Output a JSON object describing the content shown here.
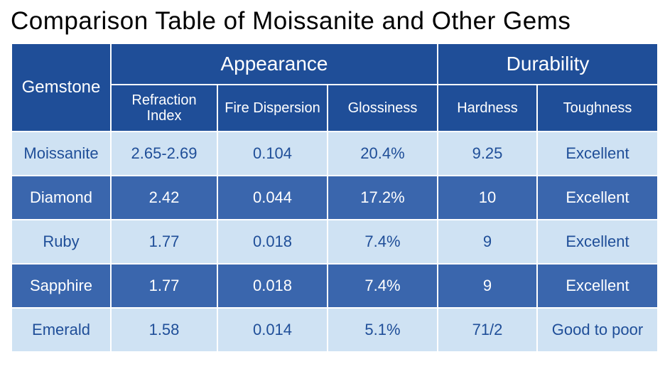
{
  "title": "Comparison Table of Moissanite and Other Gems",
  "table": {
    "row_header": "Gemstone",
    "groups": [
      {
        "label": "Appearance",
        "span": 3
      },
      {
        "label": "Durability",
        "span": 2
      }
    ],
    "columns": [
      "Refraction Index",
      "Fire Dispersion",
      "Glossiness",
      "Hardness",
      "Toughness"
    ],
    "rows": [
      {
        "gem": "Moissanite",
        "cells": [
          "2.65-2.69",
          "0.104",
          "20.4%",
          "9.25",
          "Excellent"
        ]
      },
      {
        "gem": "Diamond",
        "cells": [
          "2.42",
          "0.044",
          "17.2%",
          "10",
          "Excellent"
        ]
      },
      {
        "gem": "Ruby",
        "cells": [
          "1.77",
          "0.018",
          "7.4%",
          "9",
          "Excellent"
        ]
      },
      {
        "gem": "Sapphire",
        "cells": [
          "1.77",
          "0.018",
          "7.4%",
          "9",
          "Excellent"
        ]
      },
      {
        "gem": "Emerald",
        "cells": [
          "1.58",
          "0.014",
          "5.1%",
          "71/2",
          "Good to poor"
        ]
      }
    ],
    "colors": {
      "header_bg": "#1f4e98",
      "header_text": "#ffffff",
      "row_light_bg": "#cfe2f3",
      "row_dark_bg": "#3a66ad",
      "cell_text_light": "#1f4e98",
      "cell_text_dark": "#ffffff",
      "border": "#ffffff",
      "title_color": "#000000"
    },
    "fonts": {
      "title_size_pt": 26,
      "group_header_size_pt": 21,
      "sub_header_size_pt": 15,
      "cell_size_pt": 16,
      "family": "Arial"
    }
  }
}
